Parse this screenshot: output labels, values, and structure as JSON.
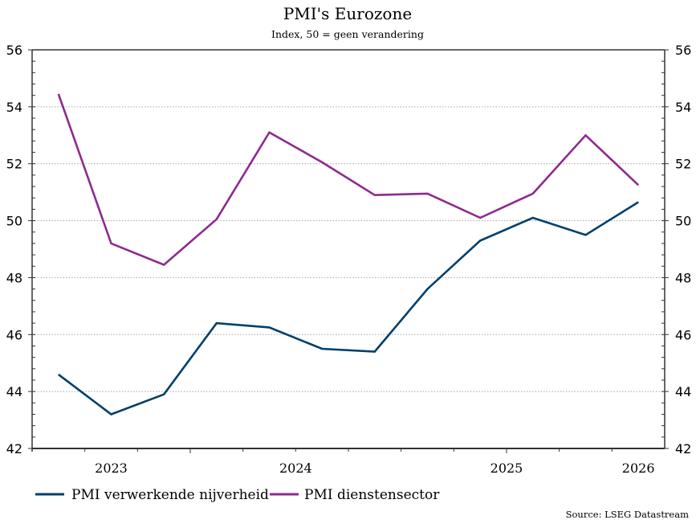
{
  "colors": {
    "manufacturing": "#003f6b",
    "services": "#8e2a8e",
    "grid": "#a6a6a6",
    "axis": "#333333"
  },
  "chart_data": {
    "type": "line",
    "title": "PMI's Eurozone",
    "subtitle": "Index, 50 = geen verandering",
    "xlabel": "",
    "ylabel": "",
    "ylim": [
      42,
      56
    ],
    "yticks": [
      42,
      44,
      46,
      48,
      50,
      52,
      54,
      56
    ],
    "ytick_labels": [
      "42",
      "44",
      "46",
      "48",
      "50",
      "52",
      "54",
      "56"
    ],
    "y_minor_step": 0.4,
    "grid": "horizontal dotted",
    "xlim": [
      0,
      12
    ],
    "x_tick_positions": [
      0,
      1,
      2,
      3,
      4,
      5,
      6,
      7,
      8,
      9,
      10,
      11
    ],
    "x_major_ticks": [
      3,
      9
    ],
    "year_labels": [
      {
        "label": "2023",
        "x": 1.5
      },
      {
        "label": "2024",
        "x": 5
      },
      {
        "label": "2025",
        "x": 9
      },
      {
        "label": "2026",
        "x": 11.5
      }
    ],
    "x": [
      0.5,
      1.5,
      2.5,
      3.5,
      4.5,
      5.5,
      6.5,
      7.5,
      8.5,
      9.5,
      10.5,
      11.5
    ],
    "series": [
      {
        "name": "PMI verwerkende nijverheid",
        "key": "manufacturing",
        "values": [
          44.6,
          43.2,
          43.9,
          46.4,
          46.25,
          45.5,
          45.4,
          47.6,
          49.3,
          50.1,
          49.5,
          50.65
        ]
      },
      {
        "name": "PMI dienstensector",
        "key": "services",
        "values": [
          54.45,
          49.2,
          48.45,
          50.05,
          53.1,
          52.05,
          50.9,
          50.95,
          50.1,
          50.95,
          53.0,
          51.25
        ]
      }
    ],
    "legend": "bottom",
    "source": "Source: LSEG Datastream"
  }
}
